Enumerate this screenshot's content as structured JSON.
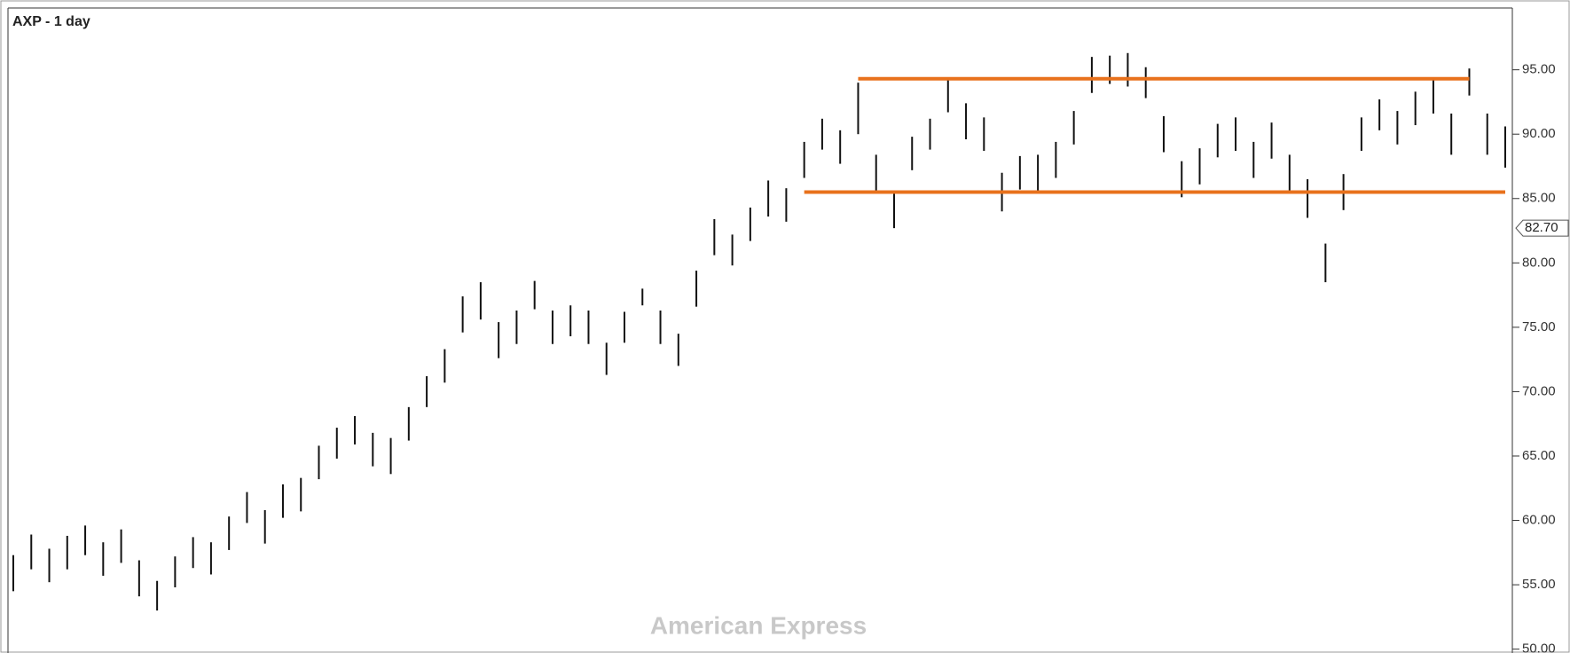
{
  "chart_data": {
    "type": "ohlc",
    "title": "AXP - 1 day",
    "watermark": "American Express",
    "color": "#111111",
    "high": [
      57.3,
      58.9,
      57.8,
      58.8,
      59.6,
      58.3,
      59.3,
      56.9,
      55.3,
      57.2,
      58.7,
      58.3,
      60.3,
      62.2,
      60.8,
      62.8,
      63.3,
      65.8,
      67.2,
      68.1,
      66.8,
      66.4,
      68.8,
      71.2,
      73.3,
      77.4,
      78.5,
      75.4,
      76.3,
      78.6,
      76.3,
      76.7,
      76.3,
      73.8,
      76.2,
      78.0,
      76.3,
      74.5,
      79.4,
      83.4,
      82.2,
      84.3,
      86.4,
      85.8,
      89.4,
      91.2,
      90.3,
      94.0,
      88.4,
      85.6,
      89.8,
      91.2,
      94.3,
      92.4,
      91.3,
      87.0,
      88.3,
      88.4,
      89.4,
      91.8,
      96.0,
      96.1,
      96.3,
      95.2,
      91.4,
      87.9,
      88.9,
      90.8,
      91.3,
      89.4,
      90.9,
      88.4,
      86.5,
      81.5,
      86.9,
      91.3,
      92.7,
      91.8,
      93.3,
      94.4,
      91.6,
      95.1,
      91.6,
      90.6
    ],
    "low": [
      54.5,
      56.2,
      55.2,
      56.2,
      57.3,
      55.7,
      56.7,
      54.1,
      53.0,
      54.8,
      56.3,
      55.8,
      57.7,
      59.8,
      58.2,
      60.2,
      60.7,
      63.2,
      64.8,
      65.9,
      64.2,
      63.6,
      66.2,
      68.8,
      70.7,
      74.6,
      75.6,
      72.6,
      73.7,
      76.4,
      73.7,
      74.3,
      73.7,
      71.3,
      73.8,
      76.7,
      73.7,
      72.0,
      76.6,
      80.6,
      79.8,
      81.7,
      83.6,
      83.2,
      86.6,
      88.8,
      87.7,
      90.0,
      85.6,
      82.7,
      87.2,
      88.8,
      91.7,
      89.6,
      88.7,
      84.0,
      85.7,
      85.6,
      86.6,
      89.2,
      93.2,
      93.9,
      93.7,
      92.8,
      88.6,
      85.1,
      86.1,
      88.2,
      88.7,
      86.6,
      88.1,
      85.6,
      83.5,
      78.5,
      84.1,
      88.7,
      90.3,
      89.2,
      90.7,
      91.6,
      88.4,
      93.0,
      88.4,
      87.4
    ],
    "levels": [
      {
        "value": 94.3,
        "from": 47,
        "to": 81,
        "color": "#e8711c"
      },
      {
        "value": 85.5,
        "from": 44,
        "to": 83,
        "color": "#e8711c"
      }
    ],
    "last_price": {
      "value": 82.7,
      "label": "82.70"
    },
    "ylim": [
      49.7,
      99.8
    ],
    "yticks": [
      {
        "value": 50,
        "label": "50.00"
      },
      {
        "value": 55,
        "label": "55.00"
      },
      {
        "value": 60,
        "label": "60.00"
      },
      {
        "value": 65,
        "label": "65.00"
      },
      {
        "value": 70,
        "label": "70.00"
      },
      {
        "value": 75,
        "label": "75.00"
      },
      {
        "value": 80,
        "label": "80.00"
      },
      {
        "value": 85,
        "label": "85.00"
      },
      {
        "value": 90,
        "label": "90.00"
      },
      {
        "value": 95,
        "label": "95.00"
      }
    ]
  }
}
